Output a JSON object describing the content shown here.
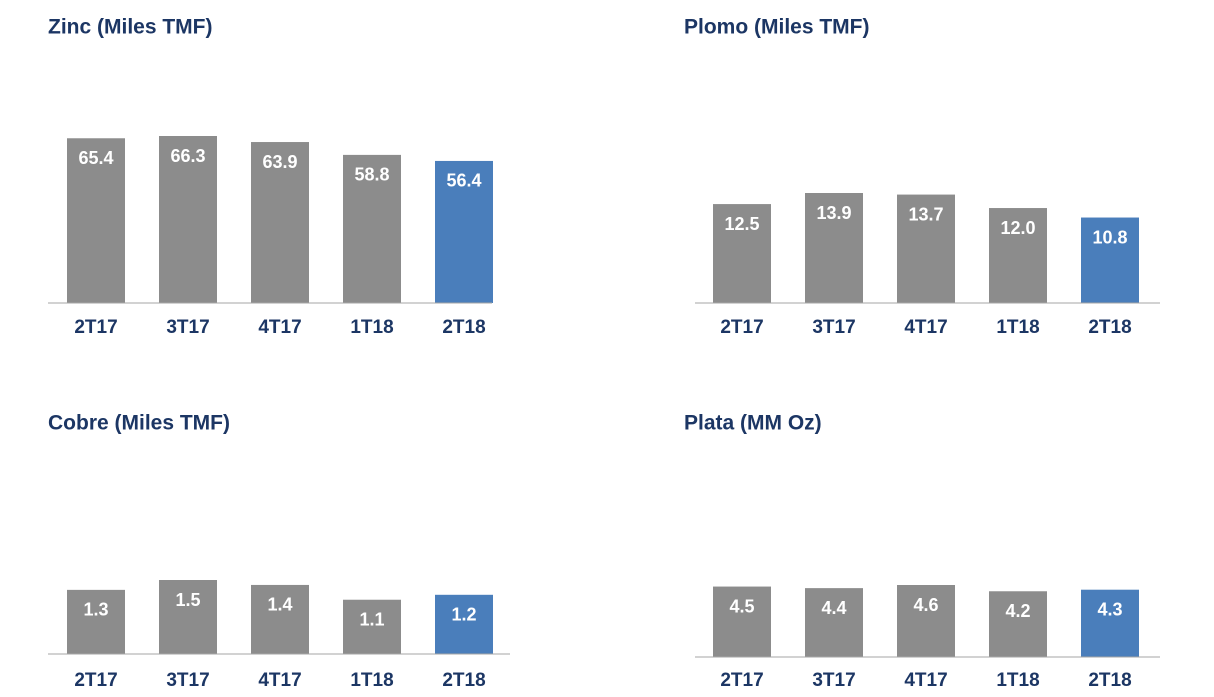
{
  "chart_data": [
    {
      "type": "bar",
      "title": "Zinc (Miles TMF)",
      "categories": [
        "2T17",
        "3T17",
        "4T17",
        "1T18",
        "2T18"
      ],
      "values": [
        65.4,
        66.3,
        63.9,
        58.8,
        56.4
      ],
      "value_labels": [
        "65.4",
        "66.3",
        "63.9",
        "58.8",
        "56.4"
      ],
      "colors": [
        "#8c8c8c",
        "#8c8c8c",
        "#8c8c8c",
        "#8c8c8c",
        "#4a7ebb"
      ]
    },
    {
      "type": "bar",
      "title": "Plomo (Miles TMF)",
      "categories": [
        "2T17",
        "3T17",
        "4T17",
        "1T18",
        "2T18"
      ],
      "values": [
        12.5,
        13.9,
        13.7,
        12.0,
        10.8
      ],
      "value_labels": [
        "12.5",
        "13.9",
        "13.7",
        "12.0",
        "10.8"
      ],
      "colors": [
        "#8c8c8c",
        "#8c8c8c",
        "#8c8c8c",
        "#8c8c8c",
        "#4a7ebb"
      ]
    },
    {
      "type": "bar",
      "title": "Cobre (Miles TMF)",
      "categories": [
        "2T17",
        "3T17",
        "4T17",
        "1T18",
        "2T18"
      ],
      "values": [
        1.3,
        1.5,
        1.4,
        1.1,
        1.2
      ],
      "value_labels": [
        "1.3",
        "1.5",
        "1.4",
        "1.1",
        "1.2"
      ],
      "colors": [
        "#8c8c8c",
        "#8c8c8c",
        "#8c8c8c",
        "#8c8c8c",
        "#4a7ebb"
      ]
    },
    {
      "type": "bar",
      "title": "Plata (MM Oz)",
      "categories": [
        "2T17",
        "3T17",
        "4T17",
        "1T18",
        "2T18"
      ],
      "values": [
        4.5,
        4.4,
        4.6,
        4.2,
        4.3
      ],
      "value_labels": [
        "4.5",
        "4.4",
        "4.6",
        "4.2",
        "4.3"
      ],
      "colors": [
        "#8c8c8c",
        "#8c8c8c",
        "#8c8c8c",
        "#8c8c8c",
        "#4a7ebb"
      ]
    }
  ]
}
